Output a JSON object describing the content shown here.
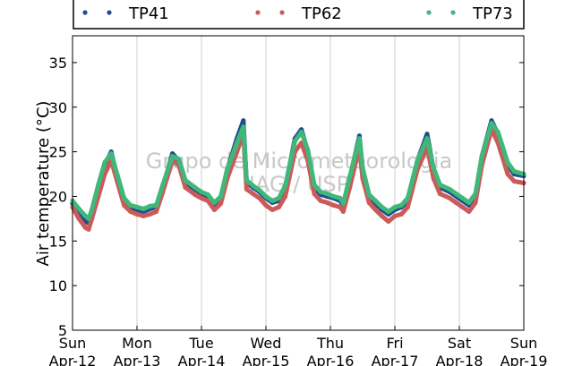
{
  "chart_data": {
    "type": "scatter",
    "ylabel": "Air temperature (°C)",
    "ylim": [
      5,
      38
    ],
    "yticks": [
      5,
      10,
      15,
      20,
      25,
      30,
      35
    ],
    "xlim": [
      0,
      7
    ],
    "xticks": [
      {
        "day": "Sun",
        "date": "Apr-12"
      },
      {
        "day": "Mon",
        "date": "Apr-13"
      },
      {
        "day": "Tue",
        "date": "Apr-14"
      },
      {
        "day": "Wed",
        "date": "Apr-15"
      },
      {
        "day": "Thu",
        "date": "Apr-16"
      },
      {
        "day": "Fri",
        "date": "Apr-17"
      },
      {
        "day": "Sat",
        "date": "Apr-18"
      },
      {
        "day": "Sun",
        "date": "Apr-19"
      }
    ],
    "grid": "vertical",
    "legend_position": "top",
    "watermark": [
      "Grupo de Micrometeorologia",
      "IAG / USP"
    ],
    "x_unit": "days since Apr-12 00:00",
    "series": [
      {
        "name": "TP41",
        "color": "#1f4e8c",
        "points": [
          [
            0,
            19.2
          ],
          [
            0.1,
            18.2
          ],
          [
            0.2,
            17.2
          ],
          [
            0.25,
            17.0
          ],
          [
            0.3,
            18.0
          ],
          [
            0.4,
            21.0
          ],
          [
            0.5,
            23.5
          ],
          [
            0.6,
            25.0
          ],
          [
            0.7,
            22.0
          ],
          [
            0.8,
            19.5
          ],
          [
            0.9,
            18.8
          ],
          [
            1.0,
            18.5
          ],
          [
            1.1,
            18.3
          ],
          [
            1.2,
            18.6
          ],
          [
            1.3,
            18.8
          ],
          [
            1.4,
            21.0
          ],
          [
            1.55,
            24.8
          ],
          [
            1.65,
            24.0
          ],
          [
            1.75,
            21.5
          ],
          [
            1.9,
            20.8
          ],
          [
            2.0,
            20.3
          ],
          [
            2.1,
            20.0
          ],
          [
            2.2,
            19.0
          ],
          [
            2.3,
            19.8
          ],
          [
            2.4,
            23.0
          ],
          [
            2.55,
            26.5
          ],
          [
            2.65,
            28.5
          ],
          [
            2.7,
            21.5
          ],
          [
            2.8,
            21.0
          ],
          [
            2.9,
            20.5
          ],
          [
            3.0,
            19.8
          ],
          [
            3.1,
            19.3
          ],
          [
            3.2,
            19.5
          ],
          [
            3.3,
            21.0
          ],
          [
            3.45,
            26.5
          ],
          [
            3.55,
            27.5
          ],
          [
            3.65,
            25.0
          ],
          [
            3.75,
            21.0
          ],
          [
            3.85,
            20.2
          ],
          [
            3.95,
            20.0
          ],
          [
            4.05,
            19.8
          ],
          [
            4.15,
            19.5
          ],
          [
            4.2,
            19.0
          ],
          [
            4.3,
            22.0
          ],
          [
            4.45,
            26.8
          ],
          [
            4.5,
            23.0
          ],
          [
            4.6,
            20.0
          ],
          [
            4.7,
            19.2
          ],
          [
            4.8,
            18.5
          ],
          [
            4.9,
            18.0
          ],
          [
            5.0,
            18.5
          ],
          [
            5.1,
            18.8
          ],
          [
            5.2,
            19.5
          ],
          [
            5.35,
            24.0
          ],
          [
            5.5,
            27.0
          ],
          [
            5.6,
            23.0
          ],
          [
            5.7,
            21.0
          ],
          [
            5.85,
            20.5
          ],
          [
            5.95,
            20.0
          ],
          [
            6.05,
            19.5
          ],
          [
            6.15,
            19.0
          ],
          [
            6.25,
            20.0
          ],
          [
            6.35,
            24.5
          ],
          [
            6.5,
            28.5
          ],
          [
            6.6,
            27.0
          ],
          [
            6.75,
            23.5
          ],
          [
            6.85,
            22.5
          ],
          [
            7.0,
            22.3
          ]
        ]
      },
      {
        "name": "TP62",
        "color": "#cc5a5a",
        "points": [
          [
            0,
            18.8
          ],
          [
            0.1,
            17.5
          ],
          [
            0.2,
            16.5
          ],
          [
            0.25,
            16.3
          ],
          [
            0.3,
            17.5
          ],
          [
            0.4,
            20.0
          ],
          [
            0.5,
            22.5
          ],
          [
            0.6,
            24.0
          ],
          [
            0.7,
            21.5
          ],
          [
            0.8,
            19.0
          ],
          [
            0.9,
            18.3
          ],
          [
            1.0,
            18.0
          ],
          [
            1.1,
            17.8
          ],
          [
            1.2,
            18.0
          ],
          [
            1.3,
            18.3
          ],
          [
            1.4,
            20.5
          ],
          [
            1.55,
            24.0
          ],
          [
            1.65,
            23.5
          ],
          [
            1.75,
            21.0
          ],
          [
            1.9,
            20.2
          ],
          [
            2.0,
            19.8
          ],
          [
            2.1,
            19.5
          ],
          [
            2.2,
            18.5
          ],
          [
            2.3,
            19.2
          ],
          [
            2.4,
            22.0
          ],
          [
            2.55,
            25.0
          ],
          [
            2.65,
            27.0
          ],
          [
            2.7,
            20.8
          ],
          [
            2.8,
            20.3
          ],
          [
            2.9,
            19.8
          ],
          [
            3.0,
            19.0
          ],
          [
            3.1,
            18.5
          ],
          [
            3.2,
            18.8
          ],
          [
            3.3,
            20.0
          ],
          [
            3.45,
            25.0
          ],
          [
            3.55,
            26.0
          ],
          [
            3.65,
            24.0
          ],
          [
            3.75,
            20.3
          ],
          [
            3.85,
            19.5
          ],
          [
            3.95,
            19.3
          ],
          [
            4.05,
            19.0
          ],
          [
            4.15,
            18.8
          ],
          [
            4.2,
            18.3
          ],
          [
            4.3,
            21.0
          ],
          [
            4.45,
            25.5
          ],
          [
            4.5,
            22.0
          ],
          [
            4.6,
            19.3
          ],
          [
            4.7,
            18.5
          ],
          [
            4.8,
            17.8
          ],
          [
            4.9,
            17.2
          ],
          [
            5.0,
            17.8
          ],
          [
            5.1,
            18.0
          ],
          [
            5.2,
            18.8
          ],
          [
            5.35,
            23.0
          ],
          [
            5.5,
            25.5
          ],
          [
            5.6,
            22.0
          ],
          [
            5.7,
            20.3
          ],
          [
            5.85,
            19.8
          ],
          [
            5.95,
            19.3
          ],
          [
            6.05,
            18.8
          ],
          [
            6.15,
            18.3
          ],
          [
            6.25,
            19.3
          ],
          [
            6.35,
            23.5
          ],
          [
            6.5,
            27.5
          ],
          [
            6.6,
            26.0
          ],
          [
            6.75,
            22.5
          ],
          [
            6.85,
            21.7
          ],
          [
            7.0,
            21.5
          ]
        ]
      },
      {
        "name": "TP73",
        "color": "#3fb87a",
        "points": [
          [
            0,
            19.5
          ],
          [
            0.1,
            18.6
          ],
          [
            0.2,
            17.8
          ],
          [
            0.25,
            17.5
          ],
          [
            0.3,
            18.5
          ],
          [
            0.4,
            21.3
          ],
          [
            0.5,
            23.8
          ],
          [
            0.6,
            24.8
          ],
          [
            0.7,
            22.3
          ],
          [
            0.8,
            19.8
          ],
          [
            0.9,
            19.0
          ],
          [
            1.0,
            18.8
          ],
          [
            1.1,
            18.6
          ],
          [
            1.2,
            18.9
          ],
          [
            1.3,
            19.0
          ],
          [
            1.4,
            21.3
          ],
          [
            1.55,
            24.5
          ],
          [
            1.65,
            24.2
          ],
          [
            1.75,
            21.8
          ],
          [
            1.9,
            21.0
          ],
          [
            2.0,
            20.5
          ],
          [
            2.1,
            20.2
          ],
          [
            2.2,
            19.3
          ],
          [
            2.3,
            20.0
          ],
          [
            2.4,
            23.0
          ],
          [
            2.55,
            26.0
          ],
          [
            2.65,
            27.8
          ],
          [
            2.7,
            21.8
          ],
          [
            2.8,
            21.2
          ],
          [
            2.9,
            20.7
          ],
          [
            3.0,
            20.0
          ],
          [
            3.1,
            19.5
          ],
          [
            3.2,
            19.8
          ],
          [
            3.3,
            21.2
          ],
          [
            3.45,
            26.2
          ],
          [
            3.55,
            27.2
          ],
          [
            3.65,
            25.2
          ],
          [
            3.75,
            21.3
          ],
          [
            3.85,
            20.5
          ],
          [
            3.95,
            20.3
          ],
          [
            4.05,
            20.0
          ],
          [
            4.15,
            19.8
          ],
          [
            4.2,
            19.2
          ],
          [
            4.3,
            22.2
          ],
          [
            4.45,
            26.5
          ],
          [
            4.5,
            23.2
          ],
          [
            4.6,
            20.2
          ],
          [
            4.7,
            19.5
          ],
          [
            4.8,
            18.8
          ],
          [
            4.9,
            18.3
          ],
          [
            5.0,
            18.8
          ],
          [
            5.1,
            19.0
          ],
          [
            5.2,
            19.8
          ],
          [
            5.35,
            24.0
          ],
          [
            5.5,
            26.5
          ],
          [
            5.6,
            23.2
          ],
          [
            5.7,
            21.3
          ],
          [
            5.85,
            20.8
          ],
          [
            5.95,
            20.3
          ],
          [
            6.05,
            19.8
          ],
          [
            6.15,
            19.3
          ],
          [
            6.25,
            20.3
          ],
          [
            6.35,
            24.5
          ],
          [
            6.5,
            28.2
          ],
          [
            6.6,
            27.2
          ],
          [
            6.75,
            23.8
          ],
          [
            6.85,
            22.8
          ],
          [
            7.0,
            22.5
          ]
        ]
      }
    ]
  }
}
